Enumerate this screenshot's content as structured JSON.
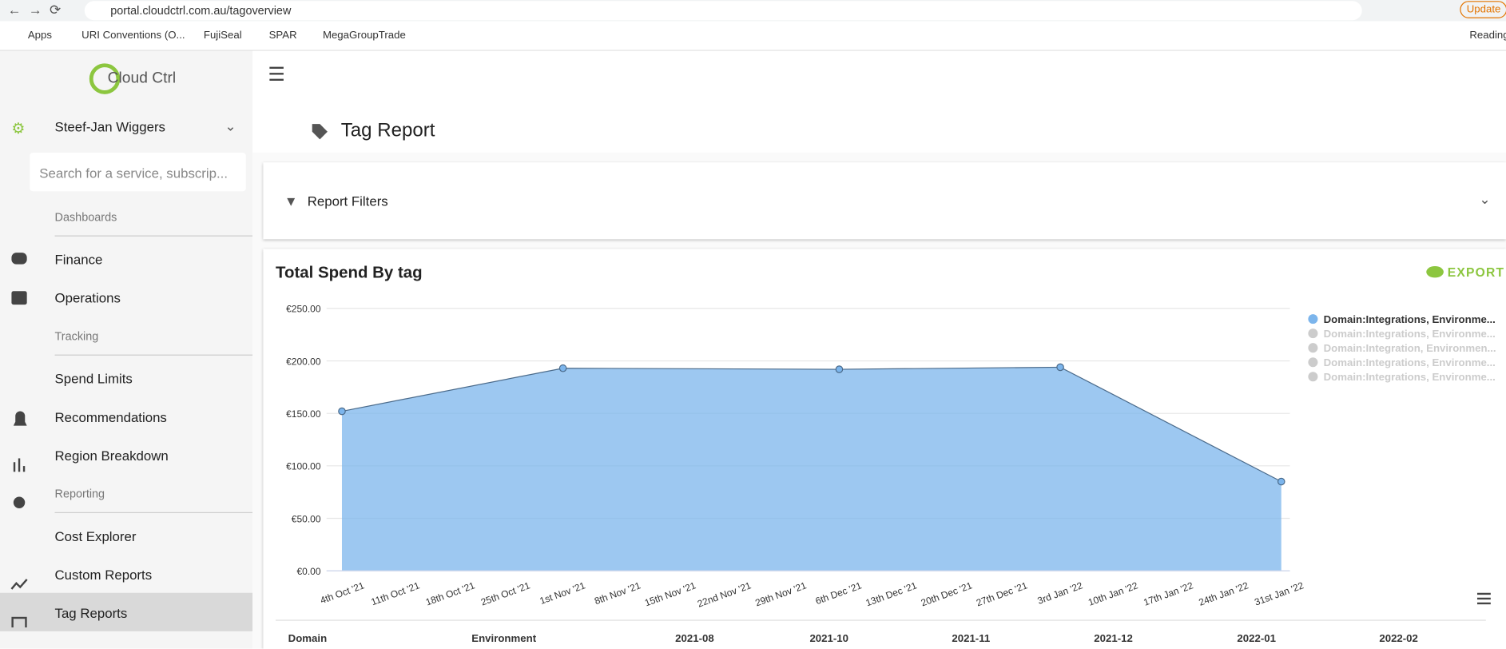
{
  "browser": {
    "url": "portal.cloudctrl.com.au/tagoverview",
    "update": "Update",
    "bookmarks": [
      "Apps",
      "URI Conventions (O...",
      "FujiSeal",
      "SPAR",
      "MegaGroupTrade"
    ],
    "reading": "Reading"
  },
  "sidebar": {
    "logo": "Cloud Ctrl",
    "user": "Steef-Jan Wiggers",
    "search_placeholder": "Search for a service, subscrip...",
    "sections": [
      "Dashboards",
      "Tracking",
      "Reporting"
    ],
    "items": [
      "Finance",
      "Operations",
      "Spend Limits",
      "Recommendations",
      "Region Breakdown",
      "Cost Explorer",
      "Custom Reports",
      "Tag Reports"
    ]
  },
  "header": {
    "title": "Tag Report"
  },
  "filters": {
    "title": "Report Filters"
  },
  "chart_card": {
    "export": "EXPORT"
  },
  "table": {
    "columns": [
      "Domain",
      "Environment",
      "2021-08",
      "2021-10",
      "2021-11",
      "2021-12",
      "2022-01",
      "2022-02"
    ]
  },
  "chart_data": {
    "type": "area",
    "title": "Total Spend By tag",
    "categories": [
      "4th Oct '21",
      "11th Oct '21",
      "18th Oct '21",
      "25th Oct '21",
      "1st Nov '21",
      "8th Nov '21",
      "15th Nov '21",
      "22nd Nov '21",
      "29th Nov '21",
      "6th Dec '21",
      "13th Dec '21",
      "20th Dec '21",
      "27th Dec '21",
      "3rd Jan '22",
      "10th Jan '22",
      "17th Jan '22",
      "24th Jan '22",
      "31st Jan '22"
    ],
    "series": [
      {
        "name": "Domain:Integrations, Environme...",
        "color": "#7cb5ec",
        "visible": true,
        "x": [
          "4th Oct '21",
          "1st Nov '21",
          "6th Dec '21",
          "3rd Jan '22",
          "31st Jan '22"
        ],
        "values": [
          152,
          193,
          192,
          194,
          85
        ]
      },
      {
        "name": "Domain:Integrations, Environme...",
        "color": "#cccccc",
        "visible": false
      },
      {
        "name": "Domain:Integration, Environmen...",
        "color": "#cccccc",
        "visible": false
      },
      {
        "name": "Domain:Integrations, Environme...",
        "color": "#cccccc",
        "visible": false
      },
      {
        "name": "Domain:Integrations, Environme...",
        "color": "#cccccc",
        "visible": false
      }
    ],
    "ylim": [
      0,
      250
    ],
    "yticks": [
      {
        "value": 0,
        "label": "€0.00"
      },
      {
        "value": 50,
        "label": "€50.00"
      },
      {
        "value": 100,
        "label": "€100.00"
      },
      {
        "value": 150,
        "label": "€150.00"
      },
      {
        "value": 200,
        "label": "€200.00"
      },
      {
        "value": 250,
        "label": "€250.00"
      }
    ],
    "grid": true,
    "legend": "right"
  }
}
